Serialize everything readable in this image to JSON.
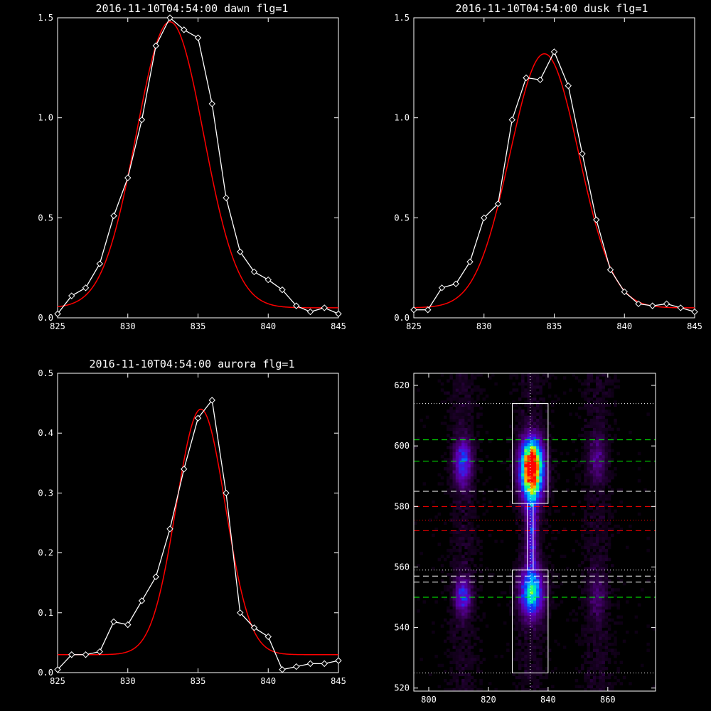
{
  "chart_data": [
    {
      "type": "line",
      "title": "2016-11-10T04:54:00 dawn flg=1",
      "xlim": [
        825,
        845
      ],
      "ylim": [
        0,
        1.5
      ],
      "xticks": [
        825,
        830,
        835,
        840,
        845
      ],
      "yticks": [
        0.0,
        0.5,
        1.0,
        1.5
      ],
      "ytick_labels": [
        "0.0",
        "0.5",
        "1.0",
        "1.5"
      ],
      "series": [
        {
          "style": "data",
          "color": "#ffffff",
          "marker": "diamond",
          "x": [
            825,
            826,
            827,
            828,
            829,
            830,
            831,
            832,
            833,
            834,
            835,
            836,
            837,
            838,
            839,
            840,
            841,
            842,
            843,
            844,
            845
          ],
          "y": [
            0.02,
            0.11,
            0.15,
            0.27,
            0.51,
            0.7,
            0.99,
            1.36,
            1.5,
            1.44,
            1.4,
            1.07,
            0.6,
            0.33,
            0.23,
            0.19,
            0.14,
            0.06,
            0.03,
            0.05,
            0.02
          ]
        },
        {
          "style": "fit",
          "color": "#ff0000",
          "gauss": {
            "A": 1.43,
            "mu": 833.0,
            "sigma": 2.4,
            "c": 0.05
          }
        }
      ]
    },
    {
      "type": "line",
      "title": "2016-11-10T04:54:00 dusk flg=1",
      "xlim": [
        825,
        845
      ],
      "ylim": [
        0,
        1.5
      ],
      "xticks": [
        825,
        830,
        835,
        840,
        845
      ],
      "yticks": [
        0.0,
        0.5,
        1.0,
        1.5
      ],
      "ytick_labels": [
        "0.0",
        "0.5",
        "1.0",
        "1.5"
      ],
      "series": [
        {
          "style": "data",
          "color": "#ffffff",
          "marker": "diamond",
          "x": [
            825,
            826,
            827,
            828,
            829,
            830,
            831,
            832,
            833,
            834,
            835,
            836,
            837,
            838,
            839,
            840,
            841,
            842,
            843,
            844,
            845
          ],
          "y": [
            0.04,
            0.04,
            0.15,
            0.17,
            0.28,
            0.5,
            0.57,
            0.99,
            1.2,
            1.19,
            1.33,
            1.16,
            0.82,
            0.49,
            0.24,
            0.13,
            0.07,
            0.06,
            0.07,
            0.05,
            0.03
          ]
        },
        {
          "style": "fit",
          "color": "#ff0000",
          "gauss": {
            "A": 1.27,
            "mu": 834.3,
            "sigma": 2.45,
            "c": 0.05
          }
        }
      ]
    },
    {
      "type": "line",
      "title": "2016-11-10T04:54:00 aurora flg=1",
      "xlim": [
        825,
        845
      ],
      "ylim": [
        0,
        0.5
      ],
      "xticks": [
        825,
        830,
        835,
        840,
        845
      ],
      "yticks": [
        0.0,
        0.1,
        0.2,
        0.3,
        0.4,
        0.5
      ],
      "ytick_labels": [
        "0.0",
        "0.1",
        "0.2",
        "0.3",
        "0.4",
        "0.5"
      ],
      "series": [
        {
          "style": "data",
          "color": "#ffffff",
          "marker": "diamond",
          "x": [
            825,
            826,
            827,
            828,
            829,
            830,
            831,
            832,
            833,
            834,
            835,
            836,
            837,
            838,
            839,
            840,
            841,
            842,
            843,
            844,
            845
          ],
          "y": [
            0.005,
            0.03,
            0.03,
            0.035,
            0.085,
            0.08,
            0.12,
            0.16,
            0.24,
            0.34,
            0.425,
            0.455,
            0.3,
            0.1,
            0.075,
            0.06,
            0.005,
            0.01,
            0.015,
            0.015,
            0.02
          ]
        },
        {
          "style": "fit",
          "color": "#ff0000",
          "gauss": {
            "A": 0.41,
            "mu": 835.2,
            "sigma": 1.75,
            "c": 0.03
          }
        }
      ]
    },
    {
      "type": "heatmap",
      "title": "",
      "xlim": [
        795,
        876
      ],
      "ylim": [
        519,
        624
      ],
      "xticks": [
        800,
        820,
        840,
        860
      ],
      "yticks": [
        520,
        540,
        560,
        580,
        600,
        620
      ],
      "spots": [
        {
          "x": 834,
          "y": 594,
          "peak": 1.0,
          "sx": 2.6,
          "sy": 5.5
        },
        {
          "x": 834,
          "y": 586,
          "peak": 0.42,
          "sx": 2.6,
          "sy": 5
        },
        {
          "x": 834,
          "y": 551,
          "peak": 0.6,
          "sx": 2.7,
          "sy": 5.5
        },
        {
          "x": 834,
          "y": 571,
          "peak": 0.32,
          "sx": 1.3,
          "sy": 9
        },
        {
          "x": 811,
          "y": 594,
          "peak": 0.4,
          "sx": 2.0,
          "sy": 5
        },
        {
          "x": 811,
          "y": 550,
          "peak": 0.36,
          "sx": 1.8,
          "sy": 4
        },
        {
          "x": 856,
          "y": 595,
          "peak": 0.17,
          "sx": 2.0,
          "sy": 5
        },
        {
          "x": 856,
          "y": 550,
          "peak": 0.13,
          "sx": 2.0,
          "sy": 5
        }
      ],
      "hlines": [
        {
          "y": 614,
          "color": "#ffffff",
          "style": "dotted"
        },
        {
          "y": 602,
          "color": "#00ff00",
          "style": "dashed"
        },
        {
          "y": 595,
          "color": "#00ff00",
          "style": "dashed"
        },
        {
          "y": 585,
          "color": "#ffffff",
          "style": "dashed"
        },
        {
          "y": 580,
          "color": "#ff0000",
          "style": "dashed"
        },
        {
          "y": 575.5,
          "color": "#ff0000",
          "style": "dotted"
        },
        {
          "y": 572,
          "color": "#ff0000",
          "style": "dashed"
        },
        {
          "y": 559,
          "color": "#ffffff",
          "style": "dotted"
        },
        {
          "y": 557,
          "color": "#ffffff",
          "style": "dashed"
        },
        {
          "y": 555,
          "color": "#ffffff",
          "style": "dashed"
        },
        {
          "y": 550,
          "color": "#00ff00",
          "style": "dashed"
        },
        {
          "y": 525,
          "color": "#ffffff",
          "style": "dotted"
        }
      ],
      "vlines": [
        {
          "x": 834,
          "color": "#ffffff",
          "style": "dotted"
        }
      ],
      "boxes": [
        {
          "x0": 828,
          "x1": 840,
          "y0": 581,
          "y1": 614
        },
        {
          "x0": 828,
          "x1": 840,
          "y0": 525,
          "y1": 559
        },
        {
          "x0": 833,
          "x1": 835,
          "y0": 559,
          "y1": 581
        }
      ]
    }
  ]
}
